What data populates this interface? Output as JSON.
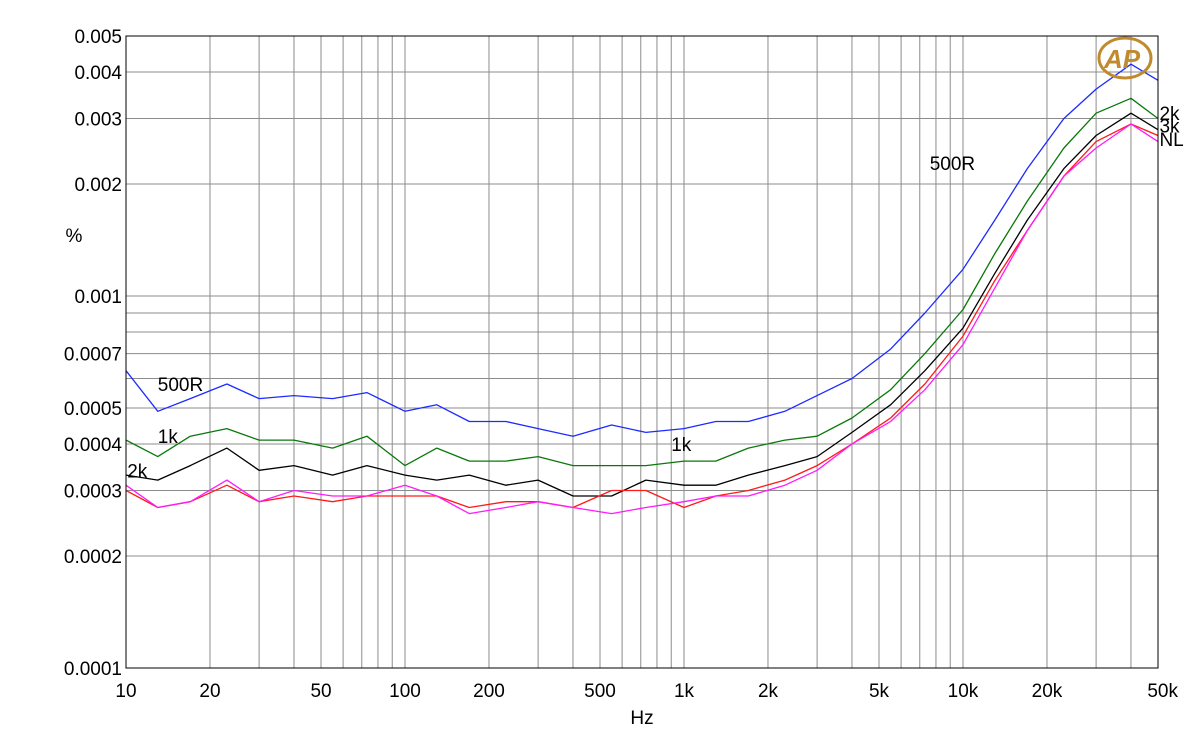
{
  "chart_data": {
    "type": "line",
    "title": "",
    "xlabel": "Hz",
    "ylabel": "%",
    "xscale": "log",
    "yscale": "log",
    "xlim": [
      10,
      50000
    ],
    "ylim": [
      0.0001,
      0.005
    ],
    "grid": true,
    "colors": {
      "blue": "#1c2bff",
      "green": "#0a780a",
      "black": "#000000",
      "red": "#ff1a1a",
      "magenta": "#ff1aff",
      "logo": "#c08a2e"
    },
    "logo_text": "AP",
    "x_ticks": [
      {
        "v": 10,
        "label": "10"
      },
      {
        "v": 20,
        "label": "20"
      },
      {
        "v": 50,
        "label": "50"
      },
      {
        "v": 100,
        "label": "100"
      },
      {
        "v": 200,
        "label": "200"
      },
      {
        "v": 500,
        "label": "500"
      },
      {
        "v": 1000,
        "label": "1k"
      },
      {
        "v": 2000,
        "label": "2k"
      },
      {
        "v": 5000,
        "label": "5k"
      },
      {
        "v": 10000,
        "label": "10k"
      },
      {
        "v": 20000,
        "label": "20k"
      },
      {
        "v": 50000,
        "label": "50k"
      }
    ],
    "y_ticks": [
      {
        "v": 0.005,
        "label": "0.005"
      },
      {
        "v": 0.004,
        "label": "0.004"
      },
      {
        "v": 0.003,
        "label": "0.003"
      },
      {
        "v": 0.002,
        "label": "0.002"
      },
      {
        "v": 0.001,
        "label": "0.001"
      },
      {
        "v": 0.0007,
        "label": "0.0007"
      },
      {
        "v": 0.0005,
        "label": "0.0005"
      },
      {
        "v": 0.0004,
        "label": "0.0004"
      },
      {
        "v": 0.0003,
        "label": "0.0003"
      },
      {
        "v": 0.0002,
        "label": "0.0002"
      },
      {
        "v": 0.0001,
        "label": "0.0001"
      }
    ],
    "series": [
      {
        "color": "#1c2bff",
        "x": [
          10,
          13,
          17,
          23,
          30,
          40,
          55,
          73,
          100,
          130,
          170,
          230,
          300,
          400,
          550,
          730,
          1000,
          1300,
          1700,
          2300,
          3000,
          4000,
          5500,
          7300,
          10000,
          13000,
          17000,
          23000,
          30000,
          40000,
          50000
        ],
        "y": [
          0.00063,
          0.00049,
          0.00053,
          0.00058,
          0.00053,
          0.00054,
          0.00053,
          0.00055,
          0.00049,
          0.00051,
          0.00046,
          0.00046,
          0.00044,
          0.00042,
          0.00045,
          0.00043,
          0.00044,
          0.00046,
          0.00046,
          0.00049,
          0.00054,
          0.0006,
          0.00072,
          0.0009,
          0.00118,
          0.0016,
          0.0022,
          0.003,
          0.0036,
          0.0042,
          0.0038
        ]
      },
      {
        "color": "#0a780a",
        "x": [
          10,
          13,
          17,
          23,
          30,
          40,
          55,
          73,
          100,
          130,
          170,
          230,
          300,
          400,
          550,
          730,
          1000,
          1300,
          1700,
          2300,
          3000,
          4000,
          5500,
          7300,
          10000,
          13000,
          17000,
          23000,
          30000,
          40000,
          50000
        ],
        "y": [
          0.00041,
          0.00037,
          0.00042,
          0.00044,
          0.00041,
          0.00041,
          0.00039,
          0.00042,
          0.00035,
          0.00039,
          0.00036,
          0.00036,
          0.00037,
          0.00035,
          0.00035,
          0.00035,
          0.00036,
          0.00036,
          0.00039,
          0.00041,
          0.00042,
          0.00047,
          0.00056,
          0.0007,
          0.00092,
          0.0013,
          0.0018,
          0.0025,
          0.0031,
          0.0034,
          0.003
        ]
      },
      {
        "color": "#000000",
        "x": [
          10,
          13,
          17,
          23,
          30,
          40,
          55,
          73,
          100,
          130,
          170,
          230,
          300,
          400,
          550,
          730,
          1000,
          1300,
          1700,
          2300,
          3000,
          4000,
          5500,
          7300,
          10000,
          13000,
          17000,
          23000,
          30000,
          40000,
          50000
        ],
        "y": [
          0.00033,
          0.00032,
          0.00035,
          0.00039,
          0.00034,
          0.00035,
          0.00033,
          0.00035,
          0.00033,
          0.00032,
          0.00033,
          0.00031,
          0.00032,
          0.00029,
          0.00029,
          0.00032,
          0.00031,
          0.00031,
          0.00033,
          0.00035,
          0.00037,
          0.00043,
          0.00051,
          0.00063,
          0.00082,
          0.00115,
          0.0016,
          0.0022,
          0.0027,
          0.0031,
          0.0028
        ]
      },
      {
        "color": "#ff1a1a",
        "x": [
          10,
          13,
          17,
          23,
          30,
          40,
          55,
          73,
          100,
          130,
          170,
          230,
          300,
          400,
          550,
          730,
          1000,
          1300,
          1700,
          2300,
          3000,
          4000,
          5500,
          7300,
          10000,
          13000,
          17000,
          23000,
          30000,
          40000,
          50000
        ],
        "y": [
          0.0003,
          0.00027,
          0.00028,
          0.00031,
          0.00028,
          0.00029,
          0.00028,
          0.00029,
          0.00029,
          0.00029,
          0.00027,
          0.00028,
          0.00028,
          0.00027,
          0.0003,
          0.0003,
          0.00027,
          0.00029,
          0.0003,
          0.00032,
          0.00035,
          0.0004,
          0.00047,
          0.00058,
          0.00078,
          0.0011,
          0.0015,
          0.0021,
          0.0026,
          0.0029,
          0.0027
        ]
      },
      {
        "color": "#ff1aff",
        "x": [
          10,
          13,
          17,
          23,
          30,
          40,
          55,
          73,
          100,
          130,
          170,
          230,
          300,
          400,
          550,
          730,
          1000,
          1300,
          1700,
          2300,
          3000,
          4000,
          5500,
          7300,
          10000,
          13000,
          17000,
          23000,
          30000,
          40000,
          50000
        ],
        "y": [
          0.00031,
          0.00027,
          0.00028,
          0.00032,
          0.00028,
          0.0003,
          0.00029,
          0.00029,
          0.00031,
          0.00029,
          0.00026,
          0.00027,
          0.00028,
          0.00027,
          0.00026,
          0.00027,
          0.00028,
          0.00029,
          0.00029,
          0.00031,
          0.00034,
          0.0004,
          0.00046,
          0.00056,
          0.00074,
          0.00105,
          0.0015,
          0.0021,
          0.0025,
          0.0029,
          0.0026
        ]
      }
    ],
    "annotations": [
      {
        "text": "500R",
        "x": 13,
        "y": 0.00058,
        "color": "#000000"
      },
      {
        "text": "1k",
        "x": 13,
        "y": 0.00042,
        "color": "#000000"
      },
      {
        "text": "2k",
        "x": 10.1,
        "y": 0.00034,
        "color": "#000000"
      },
      {
        "text": "1k",
        "x": 900,
        "y": 0.0004,
        "color": "#000000"
      },
      {
        "text": "500R",
        "x": 7600,
        "y": 0.00228,
        "color": "#000000"
      },
      {
        "text": "2k",
        "x": 50600,
        "y": 0.0031,
        "color": "#000000"
      },
      {
        "text": "3k",
        "x": 50600,
        "y": 0.00287,
        "color": "#000000"
      },
      {
        "text": "NL",
        "x": 50600,
        "y": 0.00264,
        "color": "#000000"
      }
    ]
  }
}
